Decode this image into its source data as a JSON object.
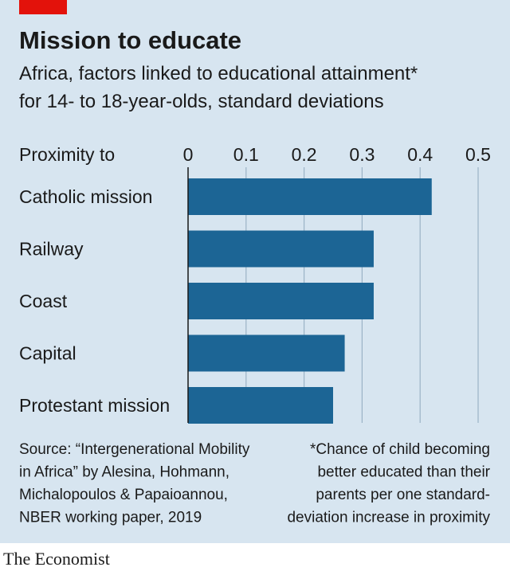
{
  "chart_data": {
    "type": "bar",
    "orientation": "horizontal",
    "title": "Mission to educate",
    "subtitle": [
      "Africa, factors linked to educational attainment*",
      "for 14- to 18-year-olds, standard deviations"
    ],
    "y_axis_label": "Proximity to",
    "categories": [
      "Catholic mission",
      "Railway",
      "Coast",
      "Capital",
      "Protestant mission"
    ],
    "values": [
      0.42,
      0.32,
      0.32,
      0.27,
      0.25
    ],
    "color": "#1c6595",
    "xlim": [
      0,
      0.5
    ],
    "xticks": [
      0,
      0.1,
      0.2,
      0.3,
      0.4,
      0.5
    ],
    "grid": true,
    "source": [
      "Source: “Intergenerational Mobility",
      "in Africa” by Alesina, Hohmann,",
      "Michalopoulos & Papaioannou,",
      "NBER working paper, 2019"
    ],
    "note": [
      "*Chance of child becoming",
      "better educated than their",
      "parents per one standard-",
      "deviation increase in proximity"
    ]
  },
  "footer": {
    "brand": "The Economist"
  }
}
